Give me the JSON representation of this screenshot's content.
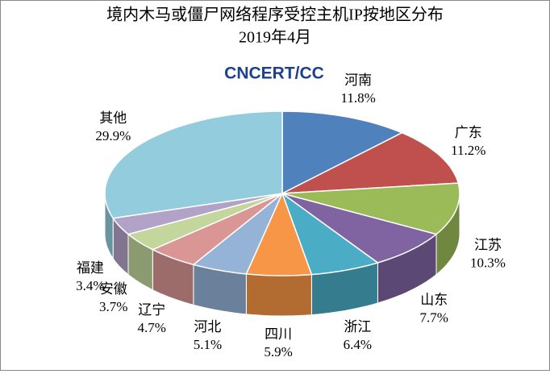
{
  "chart_data": {
    "type": "pie3d",
    "title": "境内木马或僵尸网络程序受控主机IP按地区分布",
    "subtitle": "2019年4月",
    "logo": "CNCERT/CC",
    "categories": [
      "河南",
      "广东",
      "江苏",
      "山东",
      "浙江",
      "四川",
      "河北",
      "辽宁",
      "安徽",
      "福建",
      "其他"
    ],
    "values": [
      11.8,
      11.2,
      10.3,
      7.7,
      6.4,
      5.9,
      5.1,
      4.7,
      3.7,
      3.4,
      29.9
    ],
    "value_labels": [
      "11.8%",
      "11.2%",
      "10.3%",
      "7.7%",
      "6.4%",
      "5.9%",
      "5.1%",
      "4.7%",
      "3.7%",
      "3.4%",
      "29.9%"
    ],
    "colors": [
      "#4f81bd",
      "#c0504d",
      "#9bbb59",
      "#8064a2",
      "#4bacc6",
      "#f79646",
      "#95b3d7",
      "#d99694",
      "#c3d69b",
      "#b3a2c7",
      "#93cddd"
    ]
  }
}
